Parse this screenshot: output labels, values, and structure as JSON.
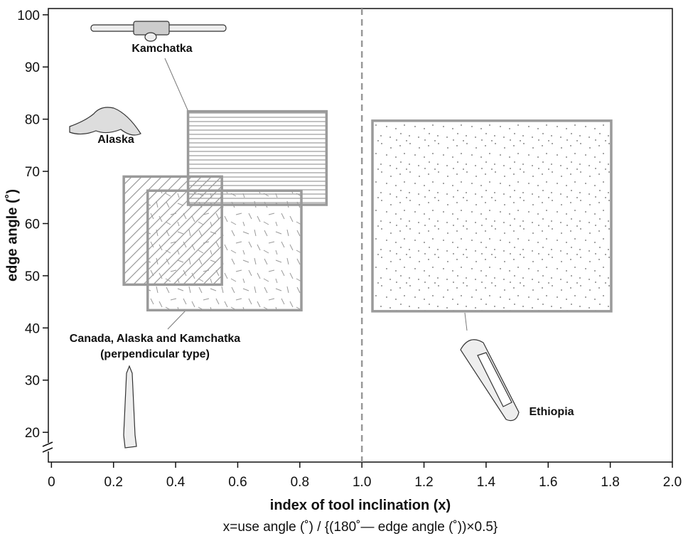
{
  "chart_data": {
    "type": "range-box",
    "xlabel": "index of tool inclination (x)",
    "xlabel_note": "x=use angle (˚) / {(180˚— edge angle (˚))×0.5}",
    "ylabel": "edge angle (˚)",
    "xlim": [
      -0.01,
      2.0
    ],
    "ylim": [
      14.3,
      101.2
    ],
    "xticks": [
      0,
      0.2,
      0.4,
      0.6,
      0.8,
      {
        "value": 1,
        "label": "1.0"
      },
      1.2,
      1.4,
      1.6,
      1.8,
      {
        "value": 2,
        "label": "2.0"
      }
    ],
    "yticks": [
      20,
      30,
      40,
      50,
      60,
      70,
      80,
      90,
      100
    ],
    "reference_line_x": 1,
    "series": [
      {
        "name": [
          "Canada, Alaska and Kamchatka",
          "(perpendicular type)"
        ],
        "pattern": "dashes",
        "color": "#9a9a9a",
        "x": [
          0.31,
          0.805
        ],
        "y": [
          43.4,
          66.3
        ]
      },
      {
        "name": [
          "Alaska"
        ],
        "pattern": "diagonal",
        "color": "#9a9a9a",
        "x": [
          0.233,
          0.549
        ],
        "y": [
          48.3,
          69.0
        ]
      },
      {
        "name": [
          "Kamchatka"
        ],
        "pattern": "horizontal",
        "color": "#9a9a9a",
        "x": [
          0.44,
          0.886
        ],
        "y": [
          63.6,
          81.5
        ]
      },
      {
        "name": [
          "Ethiopia"
        ],
        "pattern": "dots",
        "color": "#9a9a9a",
        "x": [
          1.034,
          1.803
        ],
        "y": [
          43.2,
          79.7
        ]
      }
    ]
  }
}
